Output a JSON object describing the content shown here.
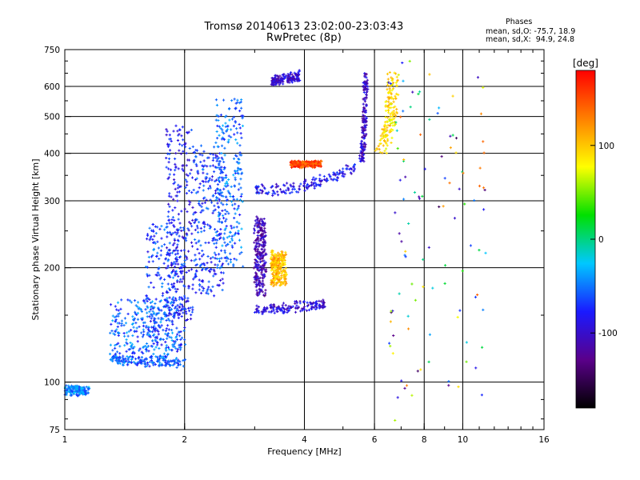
{
  "chart_data": {
    "type": "scatter",
    "title": "Tromsø 20140613 23:02:00-23:03:43",
    "subtitle": "RwPretec (8p)",
    "xlabel": "Frequency [MHz]",
    "ylabel": "Stationary phase Virtual Height [km]",
    "x_scale": "log",
    "y_scale": "log",
    "xlim": [
      1,
      16
    ],
    "ylim": [
      75,
      750
    ],
    "x_ticks": [
      1,
      2,
      4,
      6,
      8,
      10,
      16
    ],
    "y_ticks": [
      75,
      100,
      200,
      300,
      400,
      500,
      600,
      750
    ],
    "grid_x": [
      2,
      4,
      6,
      8,
      10
    ],
    "grid_y": [
      100,
      200,
      300,
      400,
      500,
      600
    ],
    "grid": true,
    "legend": {
      "title": "Phases",
      "lines": [
        "mean, sd,O: -75.7, 18.9",
        "mean, sd,X:  94.9, 24.8"
      ],
      "placement": "top-right"
    },
    "colorbar": {
      "label": "[deg]",
      "ticks": [
        100,
        0,
        -100
      ],
      "range": [
        -180,
        180
      ],
      "colors": [
        "#000000",
        "#5a008a",
        "#1a1aff",
        "#00c8ff",
        "#00e000",
        "#ffff00",
        "#ff8000",
        "#ff0000"
      ]
    },
    "series": [
      {
        "x": [
          1.0,
          1.15
        ],
        "y": [
          95,
          95
        ],
        "phase": -45,
        "shape": "band"
      },
      {
        "x": [
          1.3,
          2.0
        ],
        "y": [
          115,
          112
        ],
        "phase": -60,
        "shape": "band"
      },
      {
        "x": [
          1.3,
          1.9
        ],
        "y": [
          115,
          165
        ],
        "phase": -55,
        "shape": "cloud"
      },
      {
        "x": [
          1.6,
          2.0
        ],
        "y": [
          120,
          260
        ],
        "phase": -65,
        "shape": "cloud"
      },
      {
        "x": [
          1.8,
          2.1
        ],
        "y": [
          145,
          470
        ],
        "phase": -80,
        "shape": "cloud"
      },
      {
        "x": [
          2.1,
          2.5
        ],
        "y": [
          170,
          420
        ],
        "phase": -70,
        "shape": "cloud"
      },
      {
        "x": [
          2.4,
          2.8
        ],
        "y": [
          200,
          560
        ],
        "phase": -55,
        "shape": "cloud"
      },
      {
        "x": [
          3.0,
          4.5
        ],
        "y": [
          155,
          160
        ],
        "phase": -95,
        "shape": "band"
      },
      {
        "x": [
          3.0,
          5.4
        ],
        "y": [
          320,
          370
        ],
        "phase": -85,
        "shape": "curve"
      },
      {
        "x": [
          3.0,
          3.2
        ],
        "y": [
          170,
          270
        ],
        "phase": -110,
        "shape": "cloud"
      },
      {
        "x": [
          3.3,
          3.6
        ],
        "y": [
          180,
          220
        ],
        "phase": 105,
        "shape": "cloud"
      },
      {
        "x": [
          3.7,
          4.4
        ],
        "y": [
          370,
          380
        ],
        "phase": 150,
        "shape": "cloud"
      },
      {
        "x": [
          5.5,
          5.75
        ],
        "y": [
          380,
          650
        ],
        "phase": -100,
        "shape": "cusp"
      },
      {
        "x": [
          6.0,
          6.9
        ],
        "y": [
          400,
          650
        ],
        "phase": 90,
        "shape": "cusp"
      },
      {
        "x": [
          3.3,
          3.9
        ],
        "y": [
          620,
          640
        ],
        "phase": -100,
        "shape": "band"
      },
      {
        "x": [
          6.5,
          11.5
        ],
        "y": [
          80,
          700
        ],
        "phase": 0,
        "shape": "scatter"
      }
    ]
  }
}
